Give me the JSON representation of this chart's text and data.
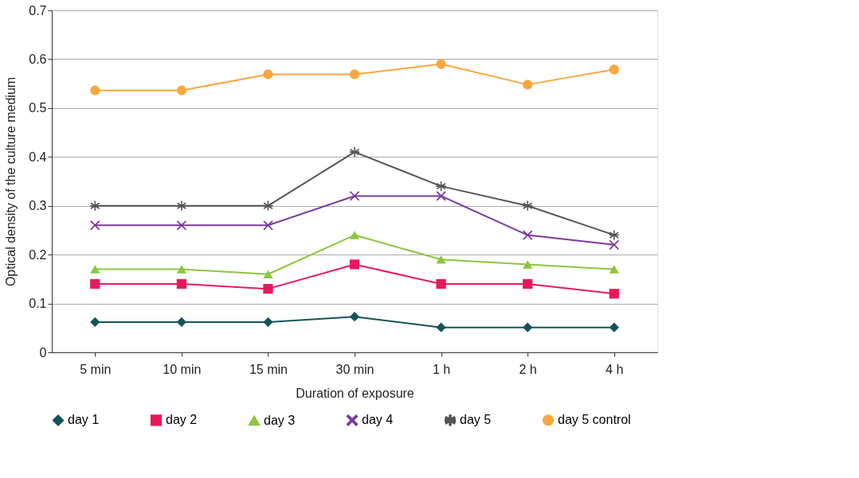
{
  "chart_data": {
    "type": "line",
    "xlabel": "Duration of exposure",
    "ylabel": "Optical density of the culture medium",
    "categories": [
      "5 min",
      "10 min",
      "15 min",
      "30 min",
      "1 h",
      "2 h",
      "4 h"
    ],
    "ylim": [
      0,
      0.7
    ],
    "yticks": [
      0,
      0.1,
      0.2,
      0.3,
      0.4,
      0.5,
      0.6,
      0.7
    ],
    "grid": "y",
    "legend": "bottom",
    "line_style": "solid",
    "series": [
      {
        "name": "day 1",
        "color": "#13545a",
        "marker": "diamond",
        "values": [
          0.062,
          0.062,
          0.062,
          0.073,
          0.051,
          0.051,
          0.051
        ]
      },
      {
        "name": "day 2",
        "color": "#e8195a",
        "marker": "square",
        "values": [
          0.14,
          0.14,
          0.13,
          0.18,
          0.14,
          0.14,
          0.12
        ]
      },
      {
        "name": "day 3",
        "color": "#8cc63f",
        "marker": "triangle",
        "values": [
          0.17,
          0.17,
          0.16,
          0.24,
          0.19,
          0.18,
          0.17
        ]
      },
      {
        "name": "day 4",
        "color": "#7a3a9a",
        "marker": "cross",
        "values": [
          0.26,
          0.26,
          0.26,
          0.32,
          0.32,
          0.24,
          0.22
        ]
      },
      {
        "name": "day 5",
        "color": "#555555",
        "marker": "star",
        "values": [
          0.3,
          0.3,
          0.3,
          0.41,
          0.34,
          0.3,
          0.24
        ]
      },
      {
        "name": "day 5 control",
        "color": "#f9a73e",
        "marker": "circle",
        "values": [
          0.536,
          0.536,
          0.569,
          0.569,
          0.59,
          0.548,
          0.579
        ]
      }
    ]
  }
}
